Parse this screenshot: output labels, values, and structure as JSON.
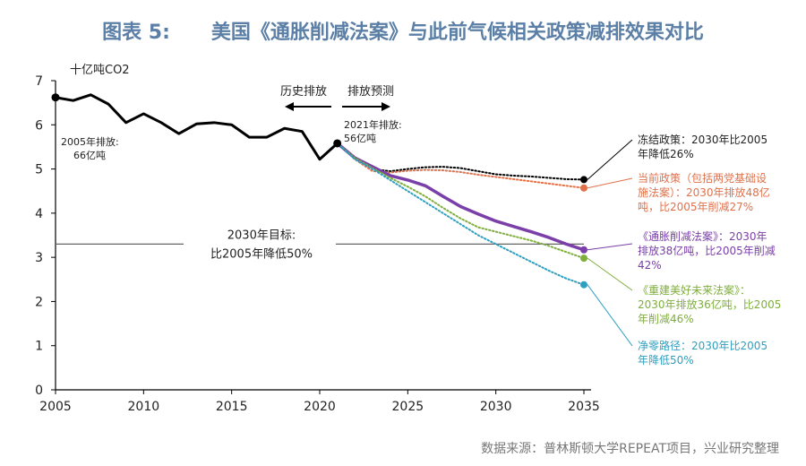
{
  "title": "图表 5:      美国《通胀削减法案》与此前气候相关政策减排效果对比",
  "source": "数据来源：普林斯顿大学REPEAT项目，兴业研究整理",
  "chart_data": {
    "type": "line",
    "ylabel": "十亿吨CO2",
    "xlim": [
      2005,
      2035
    ],
    "ylim": [
      0,
      7
    ],
    "x_ticks": [
      "2005",
      "2010",
      "2015",
      "2020",
      "2025",
      "2030",
      "2035"
    ],
    "y_ticks": [
      "0",
      "1",
      "2",
      "3",
      "4",
      "5",
      "6",
      "7"
    ],
    "grid": false,
    "labels": {
      "history": "历史排放",
      "forecast": "排放预测",
      "start": [
        "2005年排放:",
        "66亿吨"
      ],
      "end2021": [
        "2021年排放:",
        "56亿吨"
      ],
      "target": [
        "2030年目标:",
        "比2005年降低50%"
      ]
    },
    "historical": {
      "x": [
        2005,
        2006,
        2007,
        2008,
        2009,
        2010,
        2011,
        2012,
        2013,
        2014,
        2015,
        2016,
        2017,
        2018,
        2019,
        2020,
        2021
      ],
      "y": [
        6.62,
        6.55,
        6.68,
        6.47,
        6.05,
        6.25,
        6.05,
        5.8,
        6.02,
        6.05,
        6.0,
        5.72,
        5.72,
        5.92,
        5.85,
        5.22,
        5.58
      ],
      "color": "#000000"
    },
    "target_line": {
      "y": 3.3,
      "color": "#666666"
    },
    "series": [
      {
        "name": "冻结政策",
        "label": [
          "冻结政策：2030年比2005",
          "年降低26%"
        ],
        "color": "#000000",
        "style": "dotted",
        "x": [
          2021,
          2022,
          2023,
          2024,
          2025,
          2026,
          2027,
          2028,
          2029,
          2030,
          2031,
          2032,
          2033,
          2034,
          2035
        ],
        "y": [
          5.58,
          5.22,
          5.0,
          4.95,
          5.0,
          5.04,
          5.05,
          5.02,
          4.95,
          4.88,
          4.85,
          4.83,
          4.8,
          4.77,
          4.76
        ]
      },
      {
        "name": "当前政策",
        "label": [
          "当前政策（包括两党基础设",
          "施法案）：2030年排放48亿",
          "吨，比2005年削减27%"
        ],
        "color": "#e0714b",
        "style": "dotted",
        "x": [
          2021,
          2022,
          2023,
          2024,
          2025,
          2026,
          2027,
          2028,
          2029,
          2030,
          2031,
          2032,
          2033,
          2034,
          2035
        ],
        "y": [
          5.58,
          5.22,
          4.95,
          4.92,
          4.96,
          4.98,
          4.97,
          4.93,
          4.87,
          4.82,
          4.77,
          4.72,
          4.67,
          4.62,
          4.57
        ]
      },
      {
        "name": "《通胀削减法案》",
        "label": [
          "《通胀削减法案》：2030年",
          "排放38亿吨，比2005年削减",
          "42%"
        ],
        "color": "#7a3fa8",
        "style": "solid",
        "x": [
          2021,
          2022,
          2023,
          2024,
          2025,
          2026,
          2027,
          2028,
          2029,
          2030,
          2031,
          2032,
          2033,
          2034,
          2035
        ],
        "y": [
          5.58,
          5.25,
          5.05,
          4.85,
          4.75,
          4.62,
          4.38,
          4.15,
          3.98,
          3.82,
          3.7,
          3.58,
          3.45,
          3.3,
          3.17
        ]
      },
      {
        "name": "《重建美好未来法案》",
        "label": [
          "《重建美好未来法案》：",
          "2030年排放36亿吨，比2005",
          "年削减46%"
        ],
        "color": "#7fae3c",
        "style": "dotted",
        "x": [
          2021,
          2022,
          2023,
          2024,
          2025,
          2026,
          2027,
          2028,
          2029,
          2030,
          2031,
          2032,
          2033,
          2034,
          2035
        ],
        "y": [
          5.58,
          5.25,
          5.02,
          4.8,
          4.6,
          4.38,
          4.12,
          3.88,
          3.68,
          3.58,
          3.48,
          3.38,
          3.26,
          3.12,
          2.98
        ]
      },
      {
        "name": "净零路径",
        "label": [
          "净零路径：2030年比2005",
          "年降低50%"
        ],
        "color": "#2f9fc0",
        "style": "dotted",
        "x": [
          2021,
          2022,
          2023,
          2024,
          2025,
          2026,
          2027,
          2028,
          2029,
          2030,
          2031,
          2032,
          2033,
          2034,
          2035
        ],
        "y": [
          5.58,
          5.22,
          5.0,
          4.75,
          4.5,
          4.25,
          4.0,
          3.75,
          3.5,
          3.3,
          3.1,
          2.9,
          2.7,
          2.52,
          2.38
        ]
      }
    ]
  }
}
